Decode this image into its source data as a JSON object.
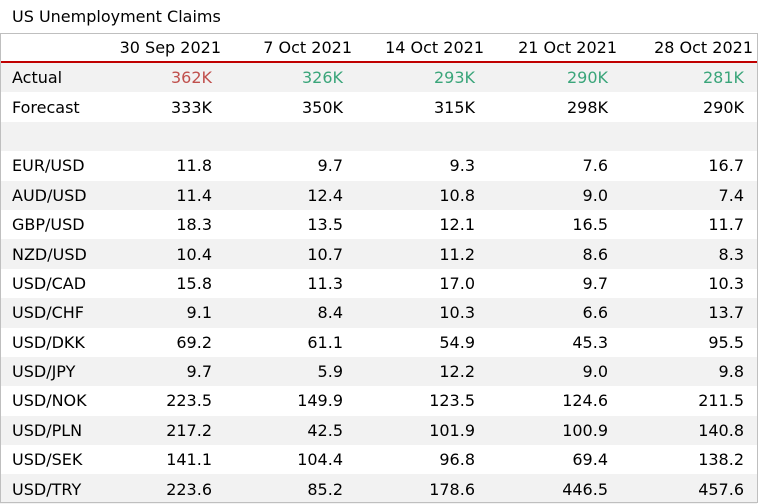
{
  "title": "US Unemployment Claims",
  "header": {
    "first": "",
    "dates": [
      "30 Sep 2021",
      "7 Oct 2021",
      "14 Oct 2021",
      "21 Oct 2021",
      "28 Oct 2021"
    ]
  },
  "actual": {
    "label": "Actual",
    "values": [
      "362K",
      "326K",
      "293K",
      "290K",
      "281K"
    ],
    "colors": [
      "#c0504d",
      "#3aa57a",
      "#3aa57a",
      "#3aa57a",
      "#3aa57a"
    ]
  },
  "forecast": {
    "label": "Forecast",
    "values": [
      "333K",
      "350K",
      "315K",
      "298K",
      "290K"
    ]
  },
  "pairs": [
    {
      "name": "EUR/USD",
      "values": [
        "11.8",
        "9.7",
        "9.3",
        "7.6",
        "16.7"
      ]
    },
    {
      "name": "AUD/USD",
      "values": [
        "11.4",
        "12.4",
        "10.8",
        "9.0",
        "7.4"
      ]
    },
    {
      "name": "GBP/USD",
      "values": [
        "18.3",
        "13.5",
        "12.1",
        "16.5",
        "11.7"
      ]
    },
    {
      "name": "NZD/USD",
      "values": [
        "10.4",
        "10.7",
        "11.2",
        "8.6",
        "8.3"
      ]
    },
    {
      "name": "USD/CAD",
      "values": [
        "15.8",
        "11.3",
        "17.0",
        "9.7",
        "10.3"
      ]
    },
    {
      "name": "USD/CHF",
      "values": [
        "9.1",
        "8.4",
        "10.3",
        "6.6",
        "13.7"
      ]
    },
    {
      "name": "USD/DKK",
      "values": [
        "69.2",
        "61.1",
        "54.9",
        "45.3",
        "95.5"
      ]
    },
    {
      "name": "USD/JPY",
      "values": [
        "9.7",
        "5.9",
        "12.2",
        "9.0",
        "9.8"
      ]
    },
    {
      "name": "USD/NOK",
      "values": [
        "223.5",
        "149.9",
        "123.5",
        "124.6",
        "211.5"
      ]
    },
    {
      "name": "USD/PLN",
      "values": [
        "217.2",
        "42.5",
        "101.9",
        "100.9",
        "140.8"
      ]
    },
    {
      "name": "USD/SEK",
      "values": [
        "141.1",
        "104.4",
        "96.8",
        "69.4",
        "138.2"
      ]
    },
    {
      "name": "USD/TRY",
      "values": [
        "223.6",
        "85.2",
        "178.6",
        "446.5",
        "457.6"
      ]
    }
  ]
}
